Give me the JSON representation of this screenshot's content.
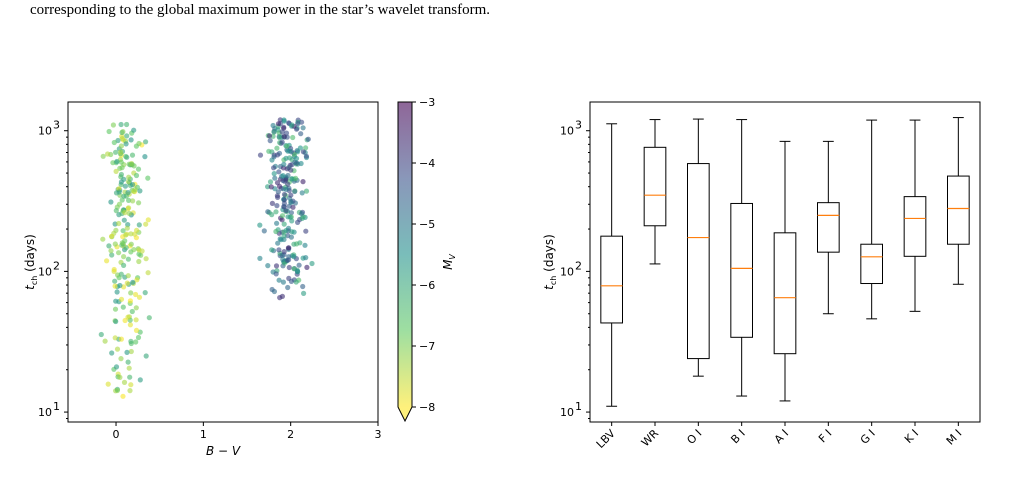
{
  "caption": "corresponding to the global maximum power in the star’s wavelet transform.",
  "chart_data": [
    {
      "type": "scatter",
      "xlabel": "B − V",
      "ylabel": "t_ch (days)",
      "ylabel_main": "t",
      "ylabel_sub": "ch",
      "ylabel_rest": " (days)",
      "xlim": [
        -0.55,
        3.0
      ],
      "ylim": [
        8.5,
        1600
      ],
      "yscale": "log",
      "xticks": [
        "0",
        "1",
        "2",
        "3"
      ],
      "yticks": [
        "10",
        "10",
        "10"
      ],
      "ytick_exps": [
        "1",
        "2",
        "3"
      ],
      "colorbar": {
        "label": "M_V",
        "label_main": "M",
        "label_sub": "V",
        "range": [
          -8,
          -3
        ],
        "ticks": [
          "−3",
          "−4",
          "−5",
          "−6",
          "−7",
          "−8"
        ],
        "colormap": [
          "#440154",
          "#3b528b",
          "#21918c",
          "#5ec962",
          "#fde725"
        ],
        "extend": "min"
      },
      "clusters": [
        {
          "name": "blue",
          "x_center": 0.1,
          "x_spread": 0.35,
          "y_log_range": [
            1.1,
            3.05
          ],
          "mv_range": [
            -8,
            -5.5
          ],
          "count": 230
        },
        {
          "name": "red",
          "x_center": 1.95,
          "x_spread": 0.35,
          "y_log_range": [
            1.8,
            3.08
          ],
          "mv_range": [
            -6.5,
            -3.5
          ],
          "count": 260
        }
      ]
    },
    {
      "type": "box",
      "ylabel": "t_ch (days)",
      "ylabel_main": "t",
      "ylabel_sub": "ch",
      "ylabel_rest": " (days)",
      "ylim": [
        8.5,
        1600
      ],
      "yscale": "log",
      "yticks": [
        "10",
        "10",
        "10"
      ],
      "ytick_exps": [
        "1",
        "2",
        "3"
      ],
      "categories": [
        "LBV",
        "WR",
        "O I",
        "B I",
        "A I",
        "F I",
        "G I",
        "K I",
        "M I"
      ],
      "median_color": "#ff7f0e",
      "boxes": [
        {
          "min": 11,
          "q1": 43,
          "median": 79,
          "q3": 178,
          "max": 1120
        },
        {
          "min": 113,
          "q1": 211,
          "median": 348,
          "q3": 762,
          "max": 1200
        },
        {
          "min": 18,
          "q1": 24,
          "median": 174,
          "q3": 584,
          "max": 1210
        },
        {
          "min": 13,
          "q1": 34,
          "median": 105,
          "q3": 304,
          "max": 1200
        },
        {
          "min": 12,
          "q1": 26,
          "median": 65,
          "q3": 188,
          "max": 840
        },
        {
          "min": 50,
          "q1": 137,
          "median": 250,
          "q3": 308,
          "max": 840
        },
        {
          "min": 46,
          "q1": 82,
          "median": 127,
          "q3": 156,
          "max": 1190
        },
        {
          "min": 52,
          "q1": 128,
          "median": 238,
          "q3": 340,
          "max": 1190
        },
        {
          "min": 81,
          "q1": 156,
          "median": 280,
          "q3": 476,
          "max": 1240
        }
      ]
    }
  ]
}
